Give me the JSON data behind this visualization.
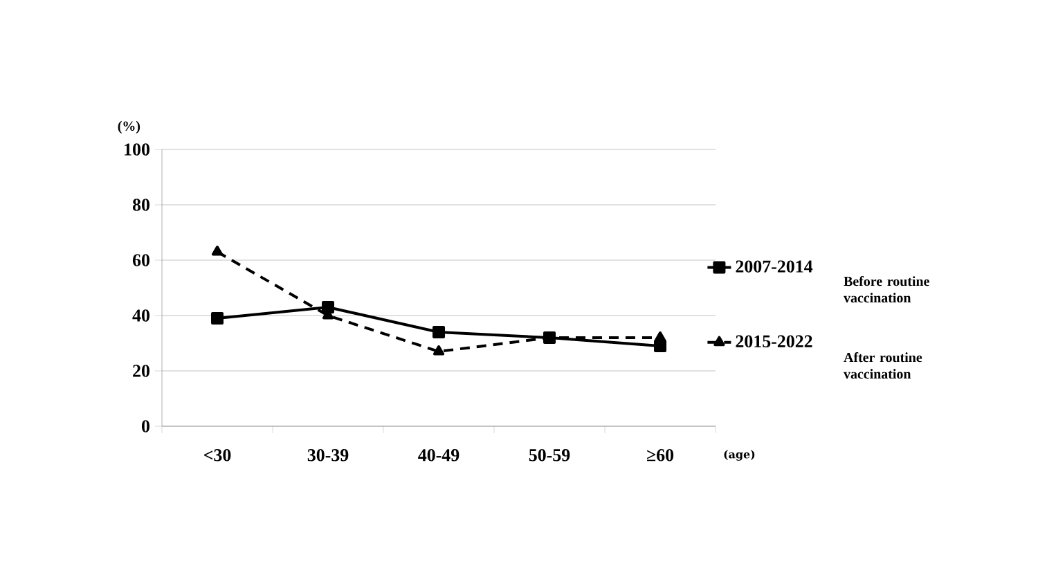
{
  "chart_data": {
    "type": "line",
    "ylabel": "(%)",
    "xlabel": "(age)",
    "categories": [
      "<30",
      "30-39",
      "40-49",
      "50-59",
      "≥60"
    ],
    "series": [
      {
        "name": "2007-2014",
        "color": "#000000",
        "marker": "square",
        "line_style": "solid",
        "values": [
          39,
          43,
          34,
          32,
          29
        ]
      },
      {
        "name": "2015-2022",
        "color": "#000000",
        "marker": "triangle",
        "line_style": "dashed",
        "values": [
          63,
          40,
          27,
          32,
          32
        ]
      }
    ],
    "ylim": [
      0,
      100
    ],
    "yticks": [
      0,
      20,
      40,
      60,
      80,
      100
    ],
    "grid": "y",
    "legend": "right",
    "annotations": [
      "Before routine vaccination",
      "After routine vaccination"
    ]
  }
}
